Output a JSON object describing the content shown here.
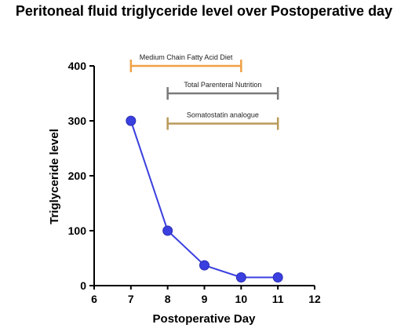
{
  "chart_data": {
    "type": "line",
    "title": "Peritoneal fluid triglyceride level over Postoperative day",
    "xlabel": "Postoperative Day",
    "ylabel": "Triglyceride level",
    "xlim": [
      6,
      12
    ],
    "ylim": [
      0,
      400
    ],
    "x_ticks": [
      "6",
      "7",
      "8",
      "9",
      "10",
      "11",
      "12"
    ],
    "y_ticks": [
      "0",
      "100",
      "200",
      "300",
      "400"
    ],
    "grid": false,
    "legend": "none",
    "series": [
      {
        "color": "#3a3fe0",
        "points": [
          {
            "x": 7,
            "y": 300
          },
          {
            "x": 8,
            "y": 100
          },
          {
            "x": 9,
            "y": 37
          },
          {
            "x": 10,
            "y": 15
          },
          {
            "x": 11,
            "y": 15
          }
        ]
      }
    ],
    "annotations": [
      {
        "label": "Medium  Chain Fatty Acid Diet",
        "x_start": 7,
        "x_end": 10,
        "y": 400,
        "color": "#f0a044"
      },
      {
        "label": "Total Parenteral Nutrition",
        "x_start": 8,
        "x_end": 11,
        "y": 350,
        "color": "#7a7a7a"
      },
      {
        "label": "Somatostatin analogue",
        "x_start": 8,
        "x_end": 11,
        "y": 295,
        "color": "#b89a5a"
      }
    ]
  }
}
